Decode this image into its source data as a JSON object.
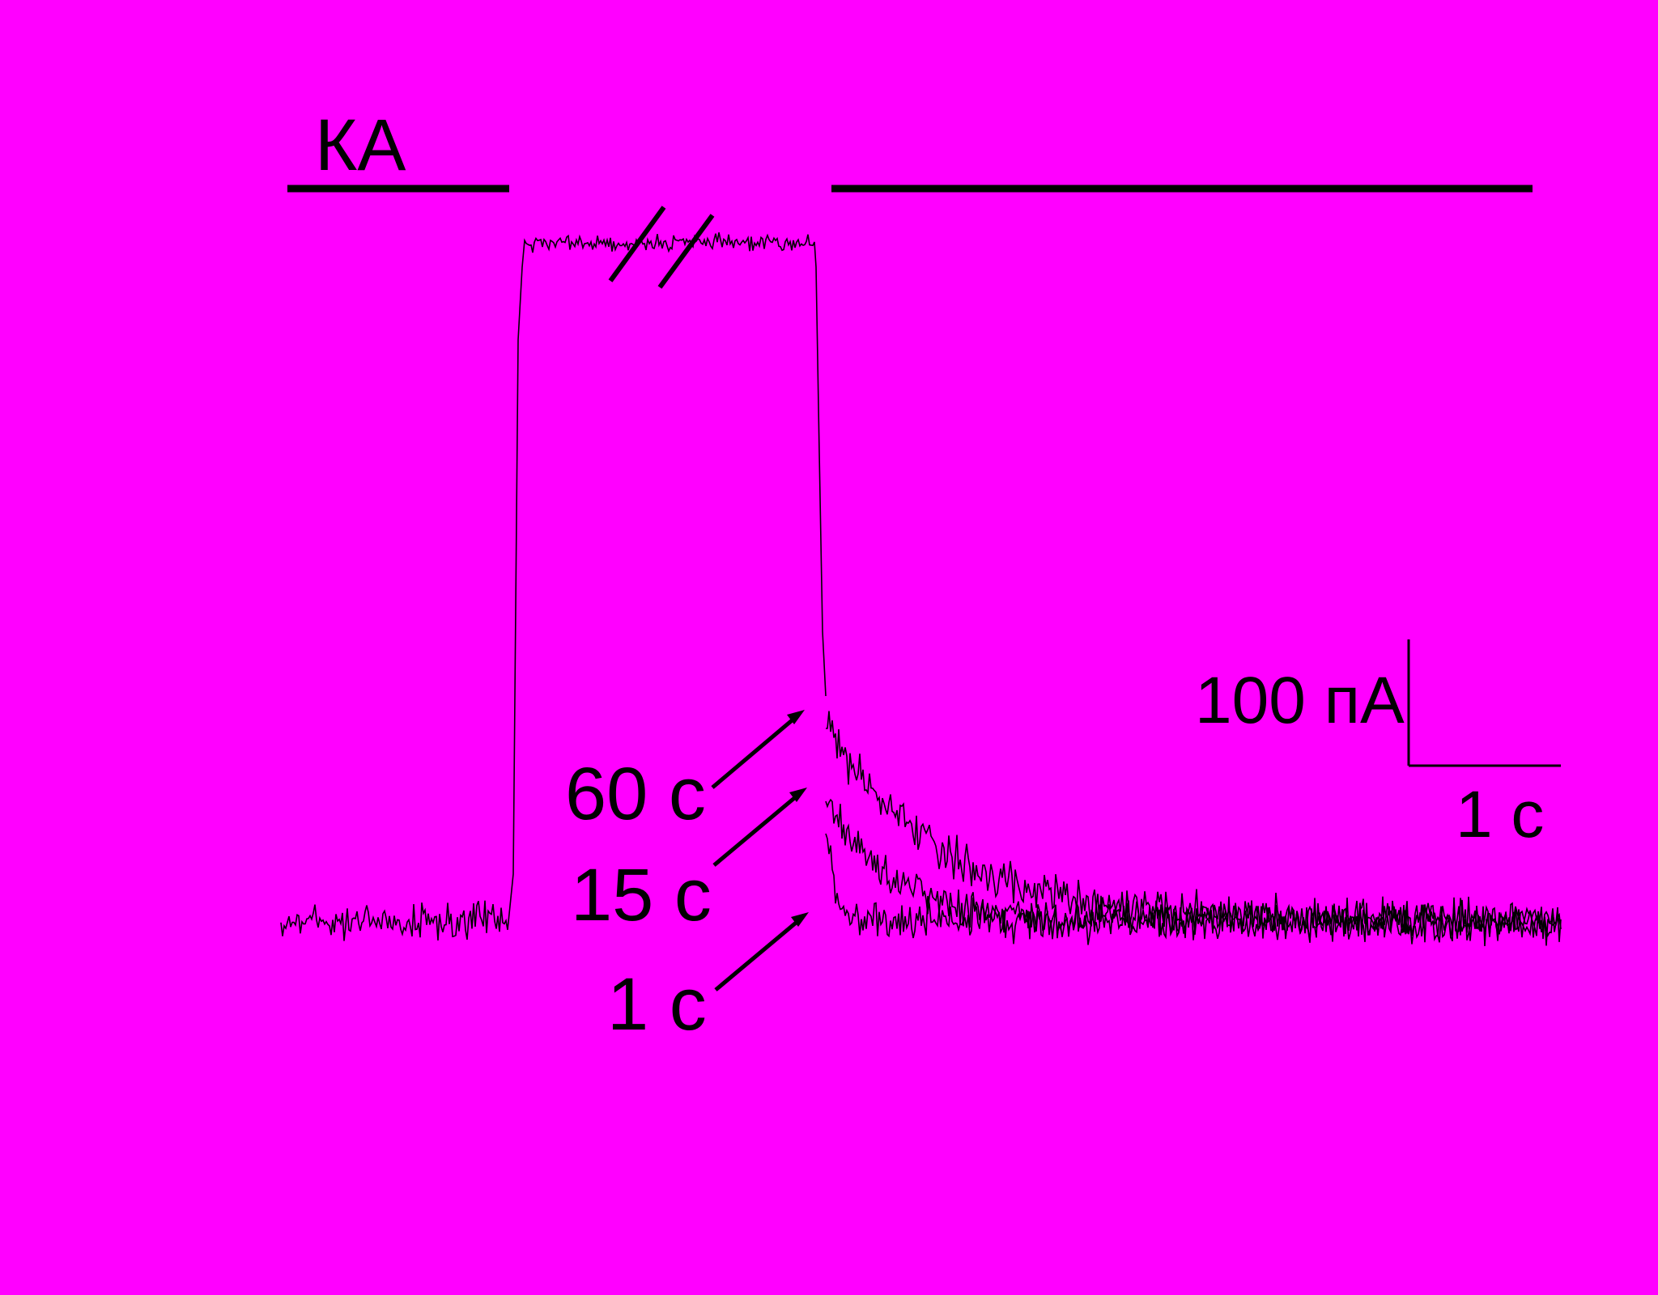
{
  "colors": {
    "background": "#FF00FF",
    "ink": "#000000"
  },
  "labels": {
    "agonist": "КА",
    "interval_60": "60 с",
    "interval_15": "15 с",
    "interval_1": "1 с",
    "scale_current": "100 пА",
    "scale_time": "1 с"
  },
  "figure": {
    "agonist_application_bars": 2,
    "axis_break": "//",
    "traces": [
      {
        "interval": "1 с",
        "recovery": "fast"
      },
      {
        "interval": "15 с",
        "recovery": "medium"
      },
      {
        "interval": "60 с",
        "recovery": "slow"
      }
    ]
  }
}
